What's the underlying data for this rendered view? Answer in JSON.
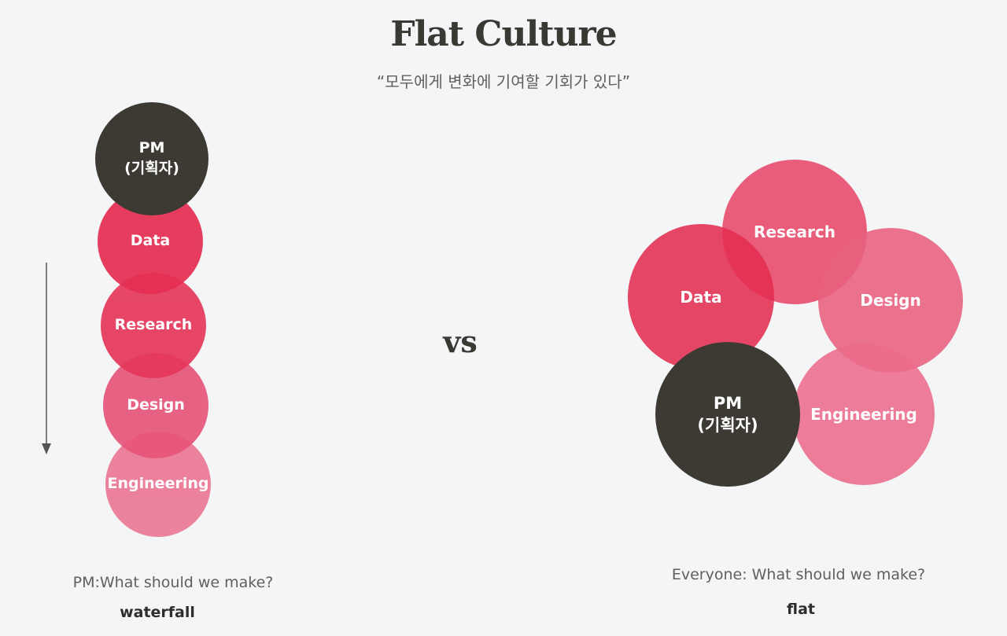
{
  "slide": {
    "title": "Flat Culture",
    "subtitle": "“모두에게 변화에 기여할 기회가 있다”",
    "vs": "vs"
  },
  "waterfall": {
    "nodes": [
      {
        "label": "PM\n(기획자)",
        "color": "#3c3a33"
      },
      {
        "label": "Data",
        "color": "#e52e52"
      },
      {
        "label": "Research",
        "color": "#e5375a"
      },
      {
        "label": "Design",
        "color": "#e7557a"
      },
      {
        "label": "Engineering",
        "color": "#ec7895"
      }
    ],
    "caption": "PM:What should we make?",
    "label": "waterfall"
  },
  "flat": {
    "nodes": [
      {
        "label": "Research",
        "color": "#e8476a"
      },
      {
        "label": "Data",
        "color": "#e52e52"
      },
      {
        "label": "Design",
        "color": "#e9607f"
      },
      {
        "label": "Engineering",
        "color": "#ec6c8b"
      },
      {
        "label": "PM\n(기획자)",
        "color": "#3c3a33"
      }
    ],
    "caption": "Everyone: What should we make?",
    "label": "flat"
  }
}
